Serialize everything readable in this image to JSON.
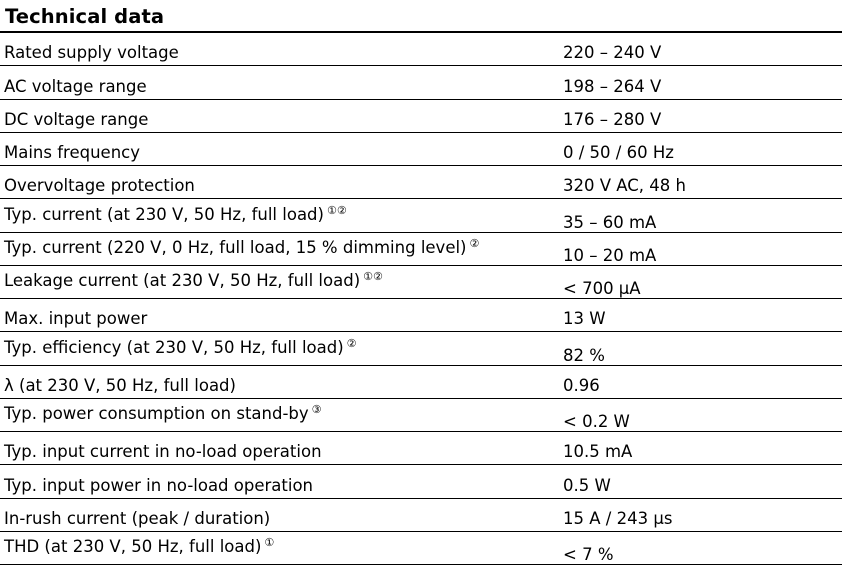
{
  "title": "Technical data",
  "rows": [
    {
      "label": "Rated supply voltage",
      "note": "",
      "value": "220 – 240 V"
    },
    {
      "label": "AC voltage range",
      "note": "",
      "value": "198 – 264 V"
    },
    {
      "label": "DC voltage range",
      "note": "",
      "value": "176 – 280 V"
    },
    {
      "label": "Mains frequency",
      "note": "",
      "value": "0 / 50 / 60 Hz"
    },
    {
      "label": "Overvoltage protection",
      "note": "",
      "value": "320 V AC, 48 h"
    },
    {
      "label": "Typ. current (at 230 V, 50 Hz, full load)",
      "note": "①②",
      "value": "35 – 60 mA"
    },
    {
      "label": "Typ. current (220 V, 0 Hz, full load, 15 % dimming level)",
      "note": "②",
      "value": "10 – 20 mA"
    },
    {
      "label": "Leakage current (at 230 V, 50 Hz, full load)",
      "note": "①②",
      "value": "< 700 µA"
    },
    {
      "label": "Max. input power",
      "note": "",
      "value": "13 W"
    },
    {
      "label": "Typ. efficiency (at 230 V, 50 Hz, full load)",
      "note": "②",
      "value": "82 %"
    },
    {
      "label": "λ (at 230 V, 50 Hz, full load)",
      "note": "",
      "value": "0.96"
    },
    {
      "label": "Typ. power consumption on stand-by",
      "note": "③",
      "value": "< 0.2 W"
    },
    {
      "label": "Typ. input current in no-load operation",
      "note": "",
      "value": "10.5 mA"
    },
    {
      "label": "Typ. input power in no-load operation",
      "note": "",
      "value": "0.5 W"
    },
    {
      "label": "In-rush current (peak / duration)",
      "note": "",
      "value": "15 A / 243 µs"
    },
    {
      "label": "THD (at 230 V, 50 Hz, full load)",
      "note": "①",
      "value": "< 7 %"
    }
  ]
}
